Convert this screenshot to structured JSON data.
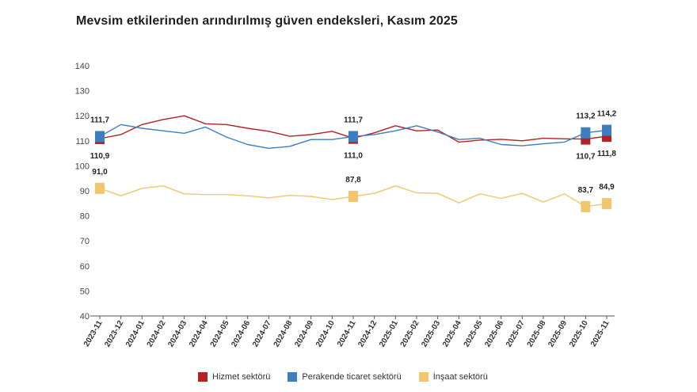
{
  "chart_data": {
    "type": "line",
    "title": "Mevsim etkilerinden arındırılmış güven endeksleri, Kasım 2025",
    "x": [
      "2023-11",
      "2023-12",
      "2024-01",
      "2024-02",
      "2024-03",
      "2024-04",
      "2024-05",
      "2024-06",
      "2024-07",
      "2024-08",
      "2024-09",
      "2024-10",
      "2024-11",
      "2024-12",
      "2025-01",
      "2025-02",
      "2025-03",
      "2025-04",
      "2025-05",
      "2025-06",
      "2025-07",
      "2025-08",
      "2025-09",
      "2025-10",
      "2025-11"
    ],
    "yticks": [
      40,
      50,
      60,
      70,
      80,
      90,
      100,
      110,
      120,
      130,
      140
    ],
    "ylim": [
      40,
      140
    ],
    "grid": false,
    "legend_position": "bottom",
    "series": [
      {
        "name": "Hizmet sektörü",
        "color": "#b22222",
        "values": [
          110.9,
          112.5,
          116.5,
          118.5,
          120.0,
          116.8,
          116.5,
          115.0,
          113.8,
          111.8,
          112.5,
          113.8,
          111.0,
          113.2,
          116.0,
          114.0,
          114.3,
          109.5,
          110.3,
          110.6,
          110.0,
          111.0,
          110.8,
          110.7,
          111.8
        ]
      },
      {
        "name": "Perakende ticaret sektörü",
        "color": "#3c7ec0",
        "values": [
          111.7,
          116.5,
          115.0,
          114.0,
          113.0,
          115.5,
          111.5,
          108.5,
          107.0,
          107.8,
          110.5,
          110.5,
          111.7,
          112.5,
          114.0,
          116.0,
          113.5,
          110.5,
          111.0,
          108.5,
          108.0,
          108.8,
          109.5,
          113.2,
          114.2
        ]
      },
      {
        "name": "İnşaat sektörü",
        "color": "#f2c66d",
        "values": [
          91.0,
          88.0,
          91.0,
          92.0,
          88.8,
          88.5,
          88.5,
          88.0,
          87.2,
          88.2,
          87.8,
          86.5,
          87.8,
          89.0,
          92.0,
          89.2,
          89.0,
          85.2,
          88.8,
          87.0,
          89.0,
          85.5,
          88.8,
          83.7,
          84.9
        ]
      }
    ],
    "data_labels": [
      {
        "series": 1,
        "index": 0,
        "text": "111,7",
        "pos": "above"
      },
      {
        "series": 0,
        "index": 0,
        "text": "110,9",
        "pos": "below"
      },
      {
        "series": 1,
        "index": 12,
        "text": "111,7",
        "pos": "above"
      },
      {
        "series": 0,
        "index": 12,
        "text": "111,0",
        "pos": "below"
      },
      {
        "series": 1,
        "index": 23,
        "text": "113,2",
        "pos": "above"
      },
      {
        "series": 1,
        "index": 24,
        "text": "114,2",
        "pos": "above"
      },
      {
        "series": 0,
        "index": 23,
        "text": "110,7",
        "pos": "below"
      },
      {
        "series": 0,
        "index": 24,
        "text": "111,8",
        "pos": "below"
      },
      {
        "series": 2,
        "index": 0,
        "text": "91,0",
        "pos": "above"
      },
      {
        "series": 2,
        "index": 12,
        "text": "87,8",
        "pos": "above"
      },
      {
        "series": 2,
        "index": 23,
        "text": "83,7",
        "pos": "above"
      },
      {
        "series": 2,
        "index": 24,
        "text": "84,9",
        "pos": "above"
      }
    ]
  }
}
